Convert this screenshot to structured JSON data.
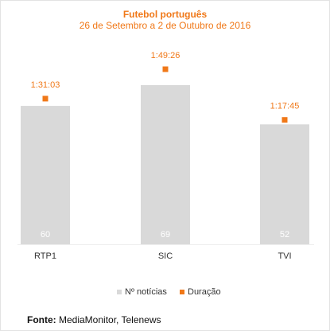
{
  "chart_data": {
    "type": "bar",
    "title": "Futebol português",
    "subtitle": "26 de Setembro a 2 de Outubro de 2016",
    "categories": [
      "RTP1",
      "SIC",
      "TVI"
    ],
    "series": [
      {
        "name": "Nº notícias",
        "kind": "bar",
        "color": "#d9d9d9",
        "values": [
          60,
          69,
          52
        ],
        "labels": [
          "60",
          "69",
          "52"
        ]
      },
      {
        "name": "Duração",
        "kind": "marker",
        "color": "#f07818",
        "values": [
          "1:31:03",
          "1:49:26",
          "1:17:45"
        ],
        "seconds": [
          5463,
          6566,
          4665
        ]
      }
    ],
    "legend": "bottom-center",
    "grid": false,
    "ylim": [
      0,
      69
    ]
  },
  "source": {
    "label": "Fonte:",
    "text": "MediaMonitor, Telenews"
  }
}
